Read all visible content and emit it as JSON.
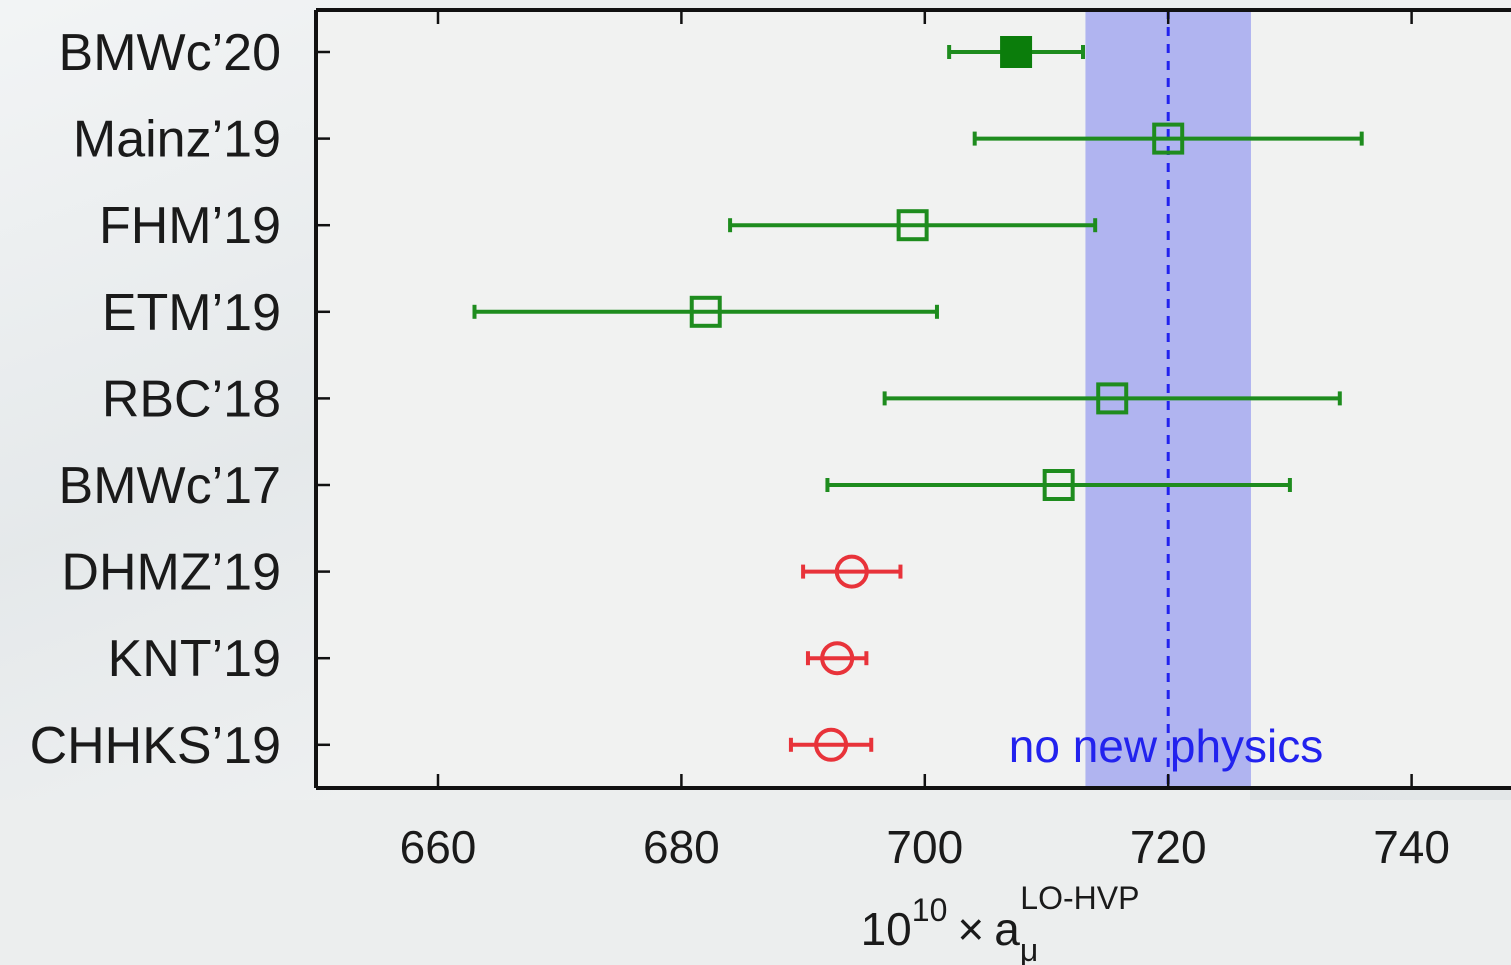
{
  "chart_data": {
    "type": "scatter",
    "title": "",
    "xlabel": {
      "base": "10",
      "exponent": "10",
      "times": "×",
      "symbol": "a",
      "subscript": "μ",
      "superscript": "LO-HVP"
    },
    "ylabel": "",
    "xlim": [
      650,
      745
    ],
    "xticks": [
      660,
      680,
      700,
      720,
      740
    ],
    "grid": false,
    "legend": "none",
    "categories": [
      "BMWc’20",
      "Mainz’19",
      "FHM’19",
      "ETM’19",
      "RBC’18",
      "BMWc’17",
      "DHMZ’19",
      "KNT’19",
      "CHHKS’19"
    ],
    "series": [
      {
        "group": "lattice",
        "color": "#1e8c1e",
        "points": [
          {
            "label": "BMWc’20",
            "value": 707.5,
            "err_low": 5.5,
            "err_high": 5.5,
            "marker": "filled-square"
          },
          {
            "label": "Mainz’19",
            "value": 720.0,
            "err_low": 15.9,
            "err_high": 15.9,
            "marker": "open-square"
          },
          {
            "label": "FHM’19",
            "value": 699.0,
            "err_low": 15.0,
            "err_high": 15.0,
            "marker": "open-square"
          },
          {
            "label": "ETM’19",
            "value": 692.1,
            "err_low": 11.3,
            "err_high": 11.3,
            "marker": "open-square-hidden"
          },
          {
            "label": "RBC’18",
            "value": 715.4,
            "err_low": 18.7,
            "err_high": 18.7,
            "marker": "open-square"
          },
          {
            "label": "BMWc’17",
            "value": 711.0,
            "err_low": 19.0,
            "err_high": 19.0,
            "marker": "open-square"
          }
        ]
      },
      {
        "group": "data-driven",
        "color": "#e8333a",
        "points": [
          {
            "label": "DHMZ’19",
            "value": 694.0,
            "err_low": 4.0,
            "err_high": 4.0,
            "marker": "open-circle"
          },
          {
            "label": "KNT’19",
            "value": 692.8,
            "err_low": 2.4,
            "err_high": 2.4,
            "marker": "open-circle"
          },
          {
            "label": "CHHKS’19",
            "value": 692.3,
            "err_low": 3.3,
            "err_high": 3.3,
            "marker": "open-circle"
          }
        ]
      }
    ],
    "band": {
      "center": 720.0,
      "low": 713.2,
      "high": 726.8,
      "color": "#a9adf0",
      "line_color": "#2222ee",
      "label": "no new physics"
    }
  }
}
